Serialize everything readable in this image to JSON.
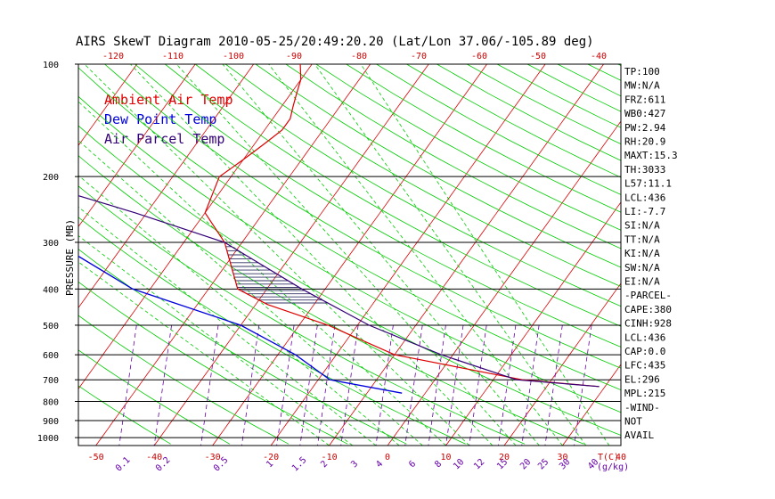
{
  "chart_data": {
    "type": "line",
    "title": "AIRS SkewT Diagram 2010-05-25/20:49:20.20 (Lat/Lon 37.06/-105.89 deg)",
    "ylabel": "PRESSURE (MB)",
    "xlabel_unit": "T(C)",
    "mixing_ratio_unit": "(g/kg)",
    "y_scale": "log",
    "ylim": [
      1050,
      100
    ],
    "xlim": [
      -53,
      40
    ],
    "pressure_ticks": [
      100,
      200,
      300,
      400,
      500,
      600,
      700,
      800,
      900,
      1000
    ],
    "bottom_temp_ticks": [
      -50,
      -40,
      -30,
      -20,
      -10,
      0,
      10,
      20,
      30,
      40
    ],
    "top_temp_ticks": [
      -120,
      -110,
      -100,
      -90,
      -80,
      -70,
      -60,
      -50,
      -40
    ],
    "mixing_ratio_ticks": [
      "0.1",
      "0.2",
      "0.5",
      "1",
      "1.5",
      "2",
      "3",
      "4",
      "6",
      "8",
      "10",
      "12",
      "15",
      "20",
      "25",
      "30",
      "40"
    ],
    "legend": [
      "Ambient Air Temp",
      "Dew Point Temp",
      "Air Parcel Temp"
    ],
    "colors": {
      "ambient": "#dd0000",
      "dewpoint": "#0000dd",
      "parcel": "#330077",
      "dry_adiabat": "#00cc00",
      "moist_adiabat": "#00cc00",
      "isotherm": "#dd0000",
      "mixing_ratio": "#6600aa",
      "axis": "#000000"
    },
    "series": [
      {
        "name": "Ambient Air Temp",
        "points": [
          [
            -62,
            100
          ],
          [
            -60,
            110
          ],
          [
            -59,
            120
          ],
          [
            -58,
            130
          ],
          [
            -57,
            140
          ],
          [
            -57,
            150
          ],
          [
            -58,
            160
          ],
          [
            -59,
            170
          ],
          [
            -60,
            180
          ],
          [
            -61,
            190
          ],
          [
            -62,
            200
          ],
          [
            -60,
            250
          ],
          [
            -53,
            300
          ],
          [
            -45,
            400
          ],
          [
            -38,
            440
          ],
          [
            -25,
            500
          ],
          [
            -10,
            600
          ],
          [
            15,
            700
          ],
          [
            29,
            730
          ]
        ]
      },
      {
        "name": "Dew Point Temp",
        "points": [
          [
            -101,
            100
          ],
          [
            -101,
            150
          ],
          [
            -96,
            170
          ],
          [
            -95,
            200
          ],
          [
            -89,
            250
          ],
          [
            -82,
            300
          ],
          [
            -63,
            400
          ],
          [
            -40,
            500
          ],
          [
            -40,
            500
          ],
          [
            -27,
            600
          ],
          [
            -18,
            700
          ],
          [
            -4,
            760
          ]
        ]
      },
      {
        "name": "Air Parcel Temp",
        "points": [
          [
            -111,
            100
          ],
          [
            -106,
            150
          ],
          [
            -97,
            200
          ],
          [
            -72,
            250
          ],
          [
            -53,
            300
          ],
          [
            -34,
            400
          ],
          [
            -18,
            500
          ],
          [
            -2,
            600
          ],
          [
            14,
            700
          ],
          [
            29,
            730
          ]
        ]
      }
    ],
    "stats": [
      "TP:100",
      "MW:N/A",
      "FRZ:611",
      "WB0:427",
      "PW:2.94",
      "RH:20.9",
      "MAXT:15.3",
      "TH:3033",
      "L57:11.1",
      "LCL:436",
      "LI:-7.7",
      "SI:N/A",
      "TT:N/A",
      "KI:N/A",
      "SW:N/A",
      "EI:N/A",
      "-PARCEL-",
      "CAPE:380",
      "CINH:928",
      "LCL:436",
      "CAP:0.0",
      "LFC:435",
      "EL:296",
      "MPL:215",
      "-WIND-",
      "NOT",
      "AVAIL"
    ]
  }
}
